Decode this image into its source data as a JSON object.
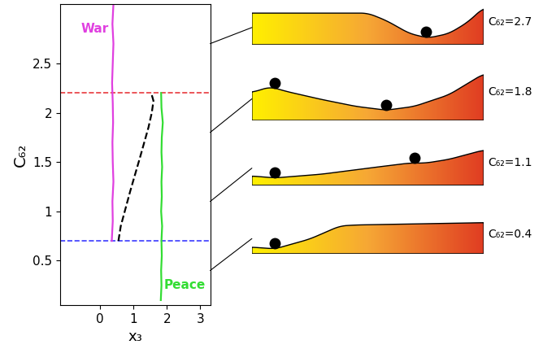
{
  "chart_data": {
    "type": "line",
    "xlabel": "x₃",
    "ylabel": "C₆₂",
    "xlim": [
      -1.2,
      3.3
    ],
    "ylim": [
      0.05,
      3.1
    ],
    "xticks": [
      0,
      1,
      2,
      3
    ],
    "yticks": [
      0.5,
      1,
      1.5,
      2,
      2.5
    ],
    "series": [
      {
        "name": "War",
        "color": "#e040e0",
        "line_style": "solid",
        "x": [
          0.35,
          0.38,
          0.37,
          0.4,
          0.38,
          0.37,
          0.39,
          0.38,
          0.36,
          0.38,
          0.4,
          0.37,
          0.4
        ],
        "y": [
          0.7,
          0.9,
          1.1,
          1.3,
          1.5,
          1.7,
          1.9,
          2.1,
          2.3,
          2.5,
          2.7,
          2.9,
          3.1
        ]
      },
      {
        "name": "Peace",
        "color": "#33dd33",
        "line_style": "solid",
        "x": [
          1.82,
          1.84,
          1.83,
          1.85,
          1.84,
          1.86,
          1.83,
          1.85,
          1.84,
          1.86,
          1.84,
          1.85,
          1.88,
          1.84,
          1.83
        ],
        "y": [
          0.1,
          0.25,
          0.4,
          0.55,
          0.7,
          0.85,
          1.0,
          1.15,
          1.3,
          1.45,
          1.6,
          1.75,
          1.9,
          2.05,
          2.2
        ]
      },
      {
        "color": "#000000",
        "line_style": "dashed",
        "x": [
          0.55,
          0.62,
          0.9,
          1.2,
          1.45,
          1.55,
          1.6,
          1.55
        ],
        "y": [
          0.7,
          0.85,
          1.2,
          1.55,
          1.85,
          2.0,
          2.12,
          2.18
        ]
      }
    ],
    "reference_lines": [
      {
        "value": 2.2,
        "color": "#e8383d",
        "line_style": "dashed"
      },
      {
        "value": 0.7,
        "color": "#3a3aff",
        "line_style": "dashed"
      }
    ]
  },
  "landscapes": [
    {
      "label": "C₆₂=2.7",
      "c62": 2.7
    },
    {
      "label": "C₆₂=1.8",
      "c62": 1.8
    },
    {
      "label": "C₆₂=1.1",
      "c62": 1.1
    },
    {
      "label": "C₆₂=0.4",
      "c62": 0.4
    }
  ]
}
